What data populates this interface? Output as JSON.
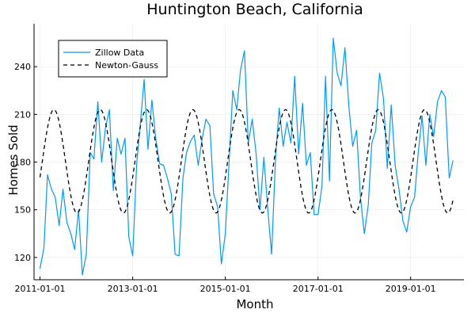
{
  "chart_data": {
    "type": "line",
    "title": "Huntington Beach, California",
    "xlabel": "Month",
    "ylabel": "Homes Sold",
    "xlim": [
      "2010-11-15",
      "2020-02-25"
    ],
    "ylim": [
      106,
      267
    ],
    "x_ticks": [
      "2011-01-01",
      "2013-01-01",
      "2015-01-01",
      "2017-01-01",
      "2019-01-01"
    ],
    "y_ticks": [
      120,
      150,
      180,
      210,
      240
    ],
    "grid": true,
    "legend_position": "top-left",
    "series": [
      {
        "name": "Zillow Data",
        "color": "#009af9",
        "style": "solid",
        "x": [
          "2011-01-01",
          "2011-02-01",
          "2011-03-01",
          "2011-04-01",
          "2011-05-01",
          "2011-06-01",
          "2011-07-01",
          "2011-08-01",
          "2011-09-01",
          "2011-10-01",
          "2011-11-01",
          "2011-12-01",
          "2012-01-01",
          "2012-02-01",
          "2012-03-01",
          "2012-04-01",
          "2012-05-01",
          "2012-06-01",
          "2012-07-01",
          "2012-08-01",
          "2012-09-01",
          "2012-10-01",
          "2012-11-01",
          "2012-12-01",
          "2013-01-01",
          "2013-02-01",
          "2013-03-01",
          "2013-04-01",
          "2013-05-01",
          "2013-06-01",
          "2013-07-01",
          "2013-08-01",
          "2013-09-01",
          "2013-10-01",
          "2013-11-01",
          "2013-12-01",
          "2014-01-01",
          "2014-02-01",
          "2014-03-01",
          "2014-04-01",
          "2014-05-01",
          "2014-06-01",
          "2014-07-01",
          "2014-08-01",
          "2014-09-01",
          "2014-10-01",
          "2014-11-01",
          "2014-12-01",
          "2015-01-01",
          "2015-02-01",
          "2015-03-01",
          "2015-04-01",
          "2015-05-01",
          "2015-06-01",
          "2015-07-01",
          "2015-08-01",
          "2015-09-01",
          "2015-10-01",
          "2015-11-01",
          "2015-12-01",
          "2016-01-01",
          "2016-02-01",
          "2016-03-01",
          "2016-04-01",
          "2016-05-01",
          "2016-06-01",
          "2016-07-01",
          "2016-08-01",
          "2016-09-01",
          "2016-10-01",
          "2016-11-01",
          "2016-12-01",
          "2017-01-01",
          "2017-02-01",
          "2017-03-01",
          "2017-04-01",
          "2017-05-01",
          "2017-06-01",
          "2017-07-01",
          "2017-08-01",
          "2017-09-01",
          "2017-10-01",
          "2017-11-01",
          "2017-12-01",
          "2018-01-01",
          "2018-02-01",
          "2018-03-01",
          "2018-04-01",
          "2018-05-01",
          "2018-06-01",
          "2018-07-01",
          "2018-08-01",
          "2018-09-01",
          "2018-10-01",
          "2018-11-01",
          "2018-12-01",
          "2019-01-01",
          "2019-02-01",
          "2019-03-01",
          "2019-04-01",
          "2019-05-01",
          "2019-06-01",
          "2019-07-01",
          "2019-08-01",
          "2019-09-01",
          "2019-10-01",
          "2019-11-01",
          "2019-12-01"
        ],
        "y": [
          113,
          126,
          172,
          163,
          158,
          140,
          163,
          142,
          135,
          125,
          150,
          109,
          122,
          186,
          182,
          218,
          180,
          202,
          213,
          162,
          195,
          185,
          195,
          133,
          121,
          179,
          203,
          232,
          188,
          219,
          195,
          179,
          178,
          170,
          160,
          122,
          121,
          170,
          186,
          193,
          197,
          178,
          194,
          207,
          203,
          160,
          152,
          116,
          135,
          182,
          225,
          213,
          238,
          250,
          192,
          207,
          185,
          150,
          183,
          151,
          122,
          183,
          214,
          190,
          205,
          192,
          234,
          185,
          217,
          178,
          186,
          147,
          147,
          165,
          234,
          168,
          258,
          236,
          228,
          252,
          215,
          190,
          200,
          158,
          135,
          153,
          192,
          200,
          236,
          220,
          176,
          216,
          178,
          163,
          143,
          136,
          152,
          158,
          185,
          209,
          178,
          210,
          196,
          218,
          225,
          221,
          170,
          181
        ]
      },
      {
        "name": "Newton-Gauss",
        "color": "#000000",
        "style": "dashed",
        "model": {
          "mean": 180.5,
          "amplitude": 32.5,
          "period_months": 12,
          "peak_month_offset": 3.6,
          "x_start": "2011-01-01",
          "x_end": "2019-12-01"
        }
      }
    ]
  }
}
